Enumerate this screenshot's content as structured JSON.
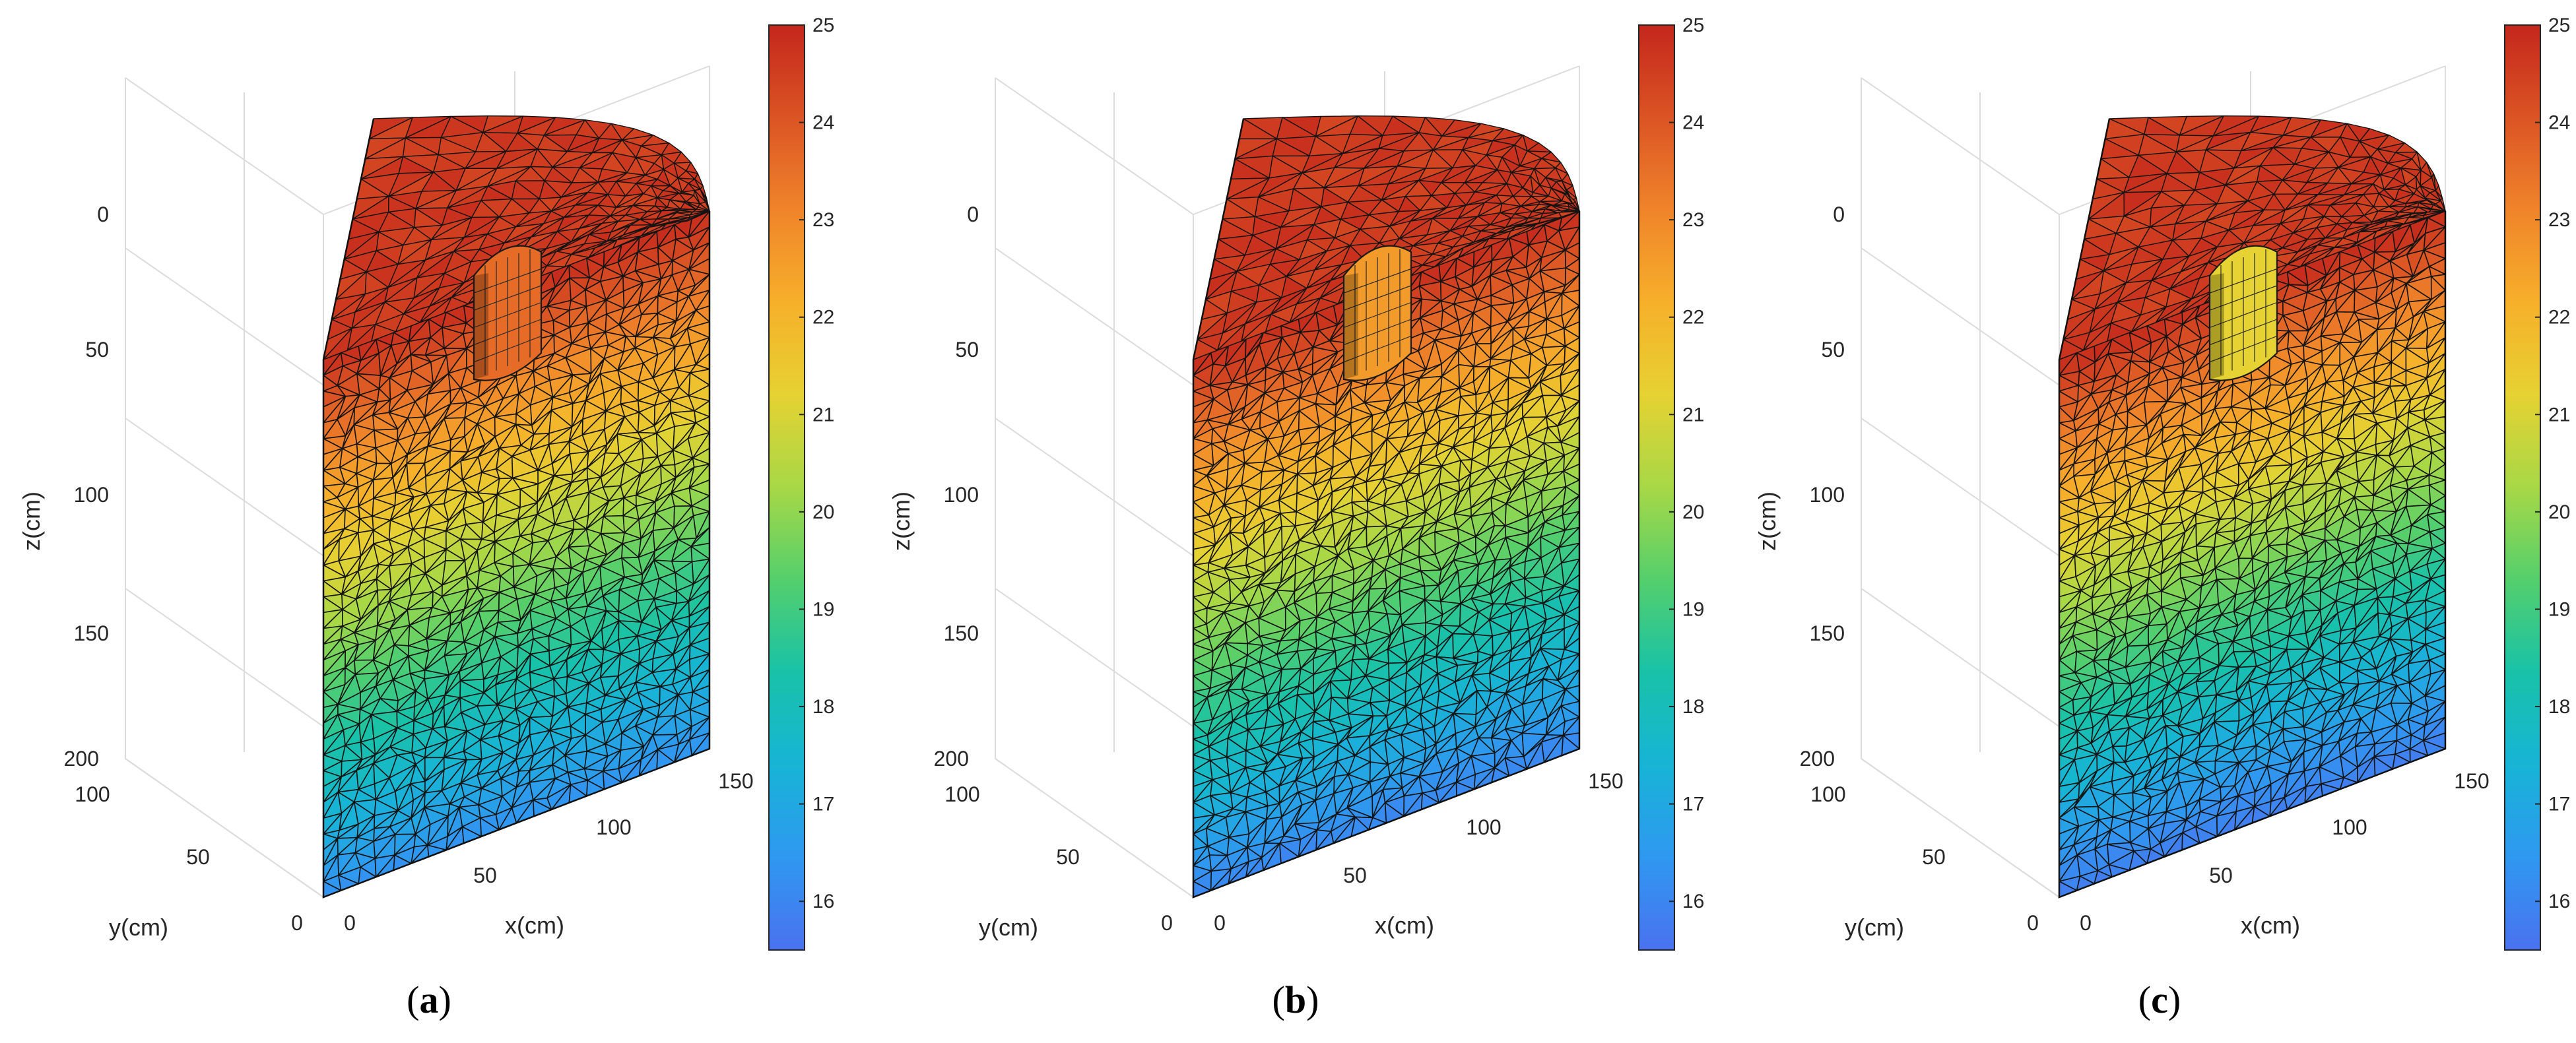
{
  "figure": {
    "colormap": [
      "#4a72f0",
      "#2f98f0",
      "#17b4d6",
      "#18c2a8",
      "#54cf6c",
      "#a7d846",
      "#e6d232",
      "#f6b02a",
      "#f0842a",
      "#db5424",
      "#c4271c"
    ]
  },
  "chart_data": [
    {
      "type": "surface3d-mesh",
      "panel_label": "a",
      "xlabel": "x(cm)",
      "ylabel": "y(cm)",
      "zlabel": "z(cm)",
      "xticks": [
        "0",
        "50",
        "100",
        "150"
      ],
      "yticks": [
        "0",
        "50",
        "100"
      ],
      "zticks": [
        "0",
        "50",
        "100",
        "150",
        "200"
      ],
      "colorbar": {
        "min": 15.5,
        "max": 25,
        "ticks": [
          "16",
          "17",
          "18",
          "19",
          "20",
          "21",
          "22",
          "23",
          "24",
          "25"
        ]
      },
      "temperature_top": 25,
      "temperature_bottom": 16.3,
      "hole_depth": 75,
      "hole_wall_temp": 23.6
    },
    {
      "type": "surface3d-mesh",
      "panel_label": "b",
      "xlabel": "x(cm)",
      "ylabel": "y(cm)",
      "zlabel": "z(cm)",
      "xticks": [
        "0",
        "50",
        "100",
        "150"
      ],
      "yticks": [
        "0",
        "50",
        "100"
      ],
      "zticks": [
        "0",
        "50",
        "100",
        "150",
        "200"
      ],
      "colorbar": {
        "min": 15.5,
        "max": 25,
        "ticks": [
          "16",
          "17",
          "18",
          "19",
          "20",
          "21",
          "22",
          "23",
          "24",
          "25"
        ]
      },
      "temperature_top": 25,
      "temperature_bottom": 16.0,
      "hole_depth": 75,
      "hole_wall_temp": 22.6
    },
    {
      "type": "surface3d-mesh",
      "panel_label": "c",
      "xlabel": "x(cm)",
      "ylabel": "y(cm)",
      "zlabel": "z(cm)",
      "xticks": [
        "0",
        "50",
        "100",
        "150"
      ],
      "yticks": [
        "0",
        "50",
        "100"
      ],
      "zticks": [
        "0",
        "50",
        "100",
        "150",
        "200"
      ],
      "colorbar": {
        "min": 15.5,
        "max": 25,
        "ticks": [
          "16",
          "17",
          "18",
          "19",
          "20",
          "21",
          "22",
          "23",
          "24",
          "25"
        ]
      },
      "temperature_top": 25,
      "temperature_bottom": 15.8,
      "hole_depth": 75,
      "hole_wall_temp": 21.2
    }
  ]
}
